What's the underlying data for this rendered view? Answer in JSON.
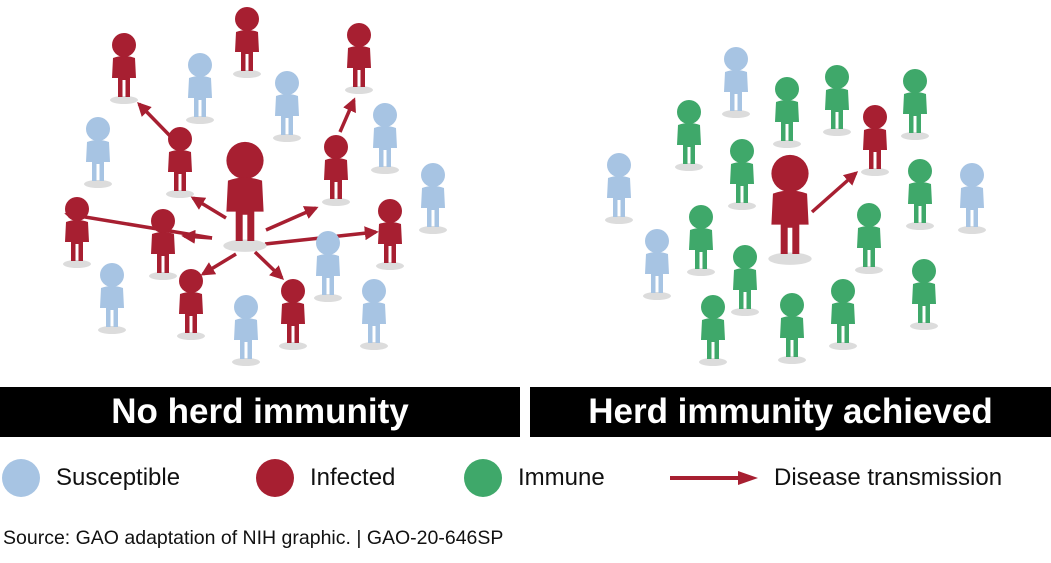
{
  "colors": {
    "susceptible": "#a7c4e3",
    "infected": "#a71f31",
    "immune": "#3fa86a",
    "shadow": "#dcdcdc",
    "arrow": "#a71f31"
  },
  "panels": [
    {
      "title": "No herd immunity",
      "people": [
        {
          "status": "infected",
          "center": true
        },
        {
          "status": "infected"
        },
        {
          "status": "infected"
        },
        {
          "status": "infected"
        },
        {
          "status": "infected"
        },
        {
          "status": "infected"
        },
        {
          "status": "infected"
        },
        {
          "status": "infected"
        },
        {
          "status": "infected"
        },
        {
          "status": "infected"
        },
        {
          "status": "infected"
        },
        {
          "status": "susceptible"
        },
        {
          "status": "susceptible"
        },
        {
          "status": "susceptible"
        },
        {
          "status": "susceptible"
        },
        {
          "status": "susceptible"
        },
        {
          "status": "susceptible"
        },
        {
          "status": "susceptible"
        },
        {
          "status": "susceptible"
        },
        {
          "status": "susceptible"
        },
        {
          "status": "susceptible"
        },
        {
          "status": "susceptible"
        }
      ]
    },
    {
      "title": "Herd immunity achieved",
      "people": [
        {
          "status": "infected",
          "center": true
        },
        {
          "status": "infected"
        },
        {
          "status": "susceptible"
        },
        {
          "status": "susceptible"
        },
        {
          "status": "susceptible"
        },
        {
          "status": "susceptible"
        },
        {
          "status": "immune"
        },
        {
          "status": "immune"
        },
        {
          "status": "immune"
        },
        {
          "status": "immune"
        },
        {
          "status": "immune"
        },
        {
          "status": "immune"
        },
        {
          "status": "immune"
        },
        {
          "status": "immune"
        },
        {
          "status": "immune"
        },
        {
          "status": "immune"
        },
        {
          "status": "immune"
        },
        {
          "status": "immune"
        },
        {
          "status": "immune"
        },
        {
          "status": "immune"
        },
        {
          "status": "immune"
        }
      ]
    }
  ],
  "legend": {
    "susceptible": "Susceptible",
    "infected": "Infected",
    "immune": "Immune",
    "transmission": "Disease transmission"
  },
  "source": "Source: GAO adaptation of NIH graphic.  |  GAO-20-646SP"
}
